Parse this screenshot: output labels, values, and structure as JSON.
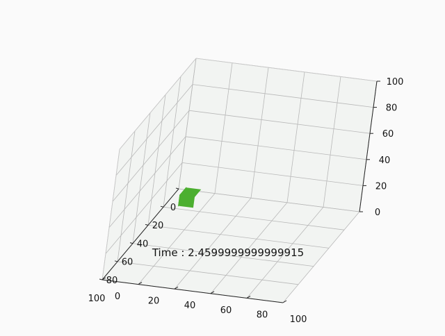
{
  "chart_data": {
    "type": "scatter",
    "projection": "3d",
    "title": "",
    "annotation": "Time : 2.4599999999999915",
    "xlabel": "",
    "ylabel": "",
    "zlabel": "",
    "xlim": [
      0,
      100
    ],
    "ylim": [
      0,
      100
    ],
    "zlim": [
      0,
      100
    ],
    "xticks": [
      0,
      20,
      40,
      60,
      80,
      100
    ],
    "yticks": [
      0,
      20,
      40,
      60,
      80,
      100
    ],
    "zticks": [
      0,
      20,
      40,
      60,
      80,
      100
    ],
    "grid": true,
    "series": [
      {
        "marker": "cube",
        "color": "#4caf30",
        "points": [
          {
            "x": 10,
            "y": 10,
            "z": 2
          }
        ]
      }
    ]
  },
  "colors": {
    "background": "#fafafa",
    "pane": "#f2f4f2",
    "grid": "#b8b8b8",
    "marker": "#4caf30"
  }
}
